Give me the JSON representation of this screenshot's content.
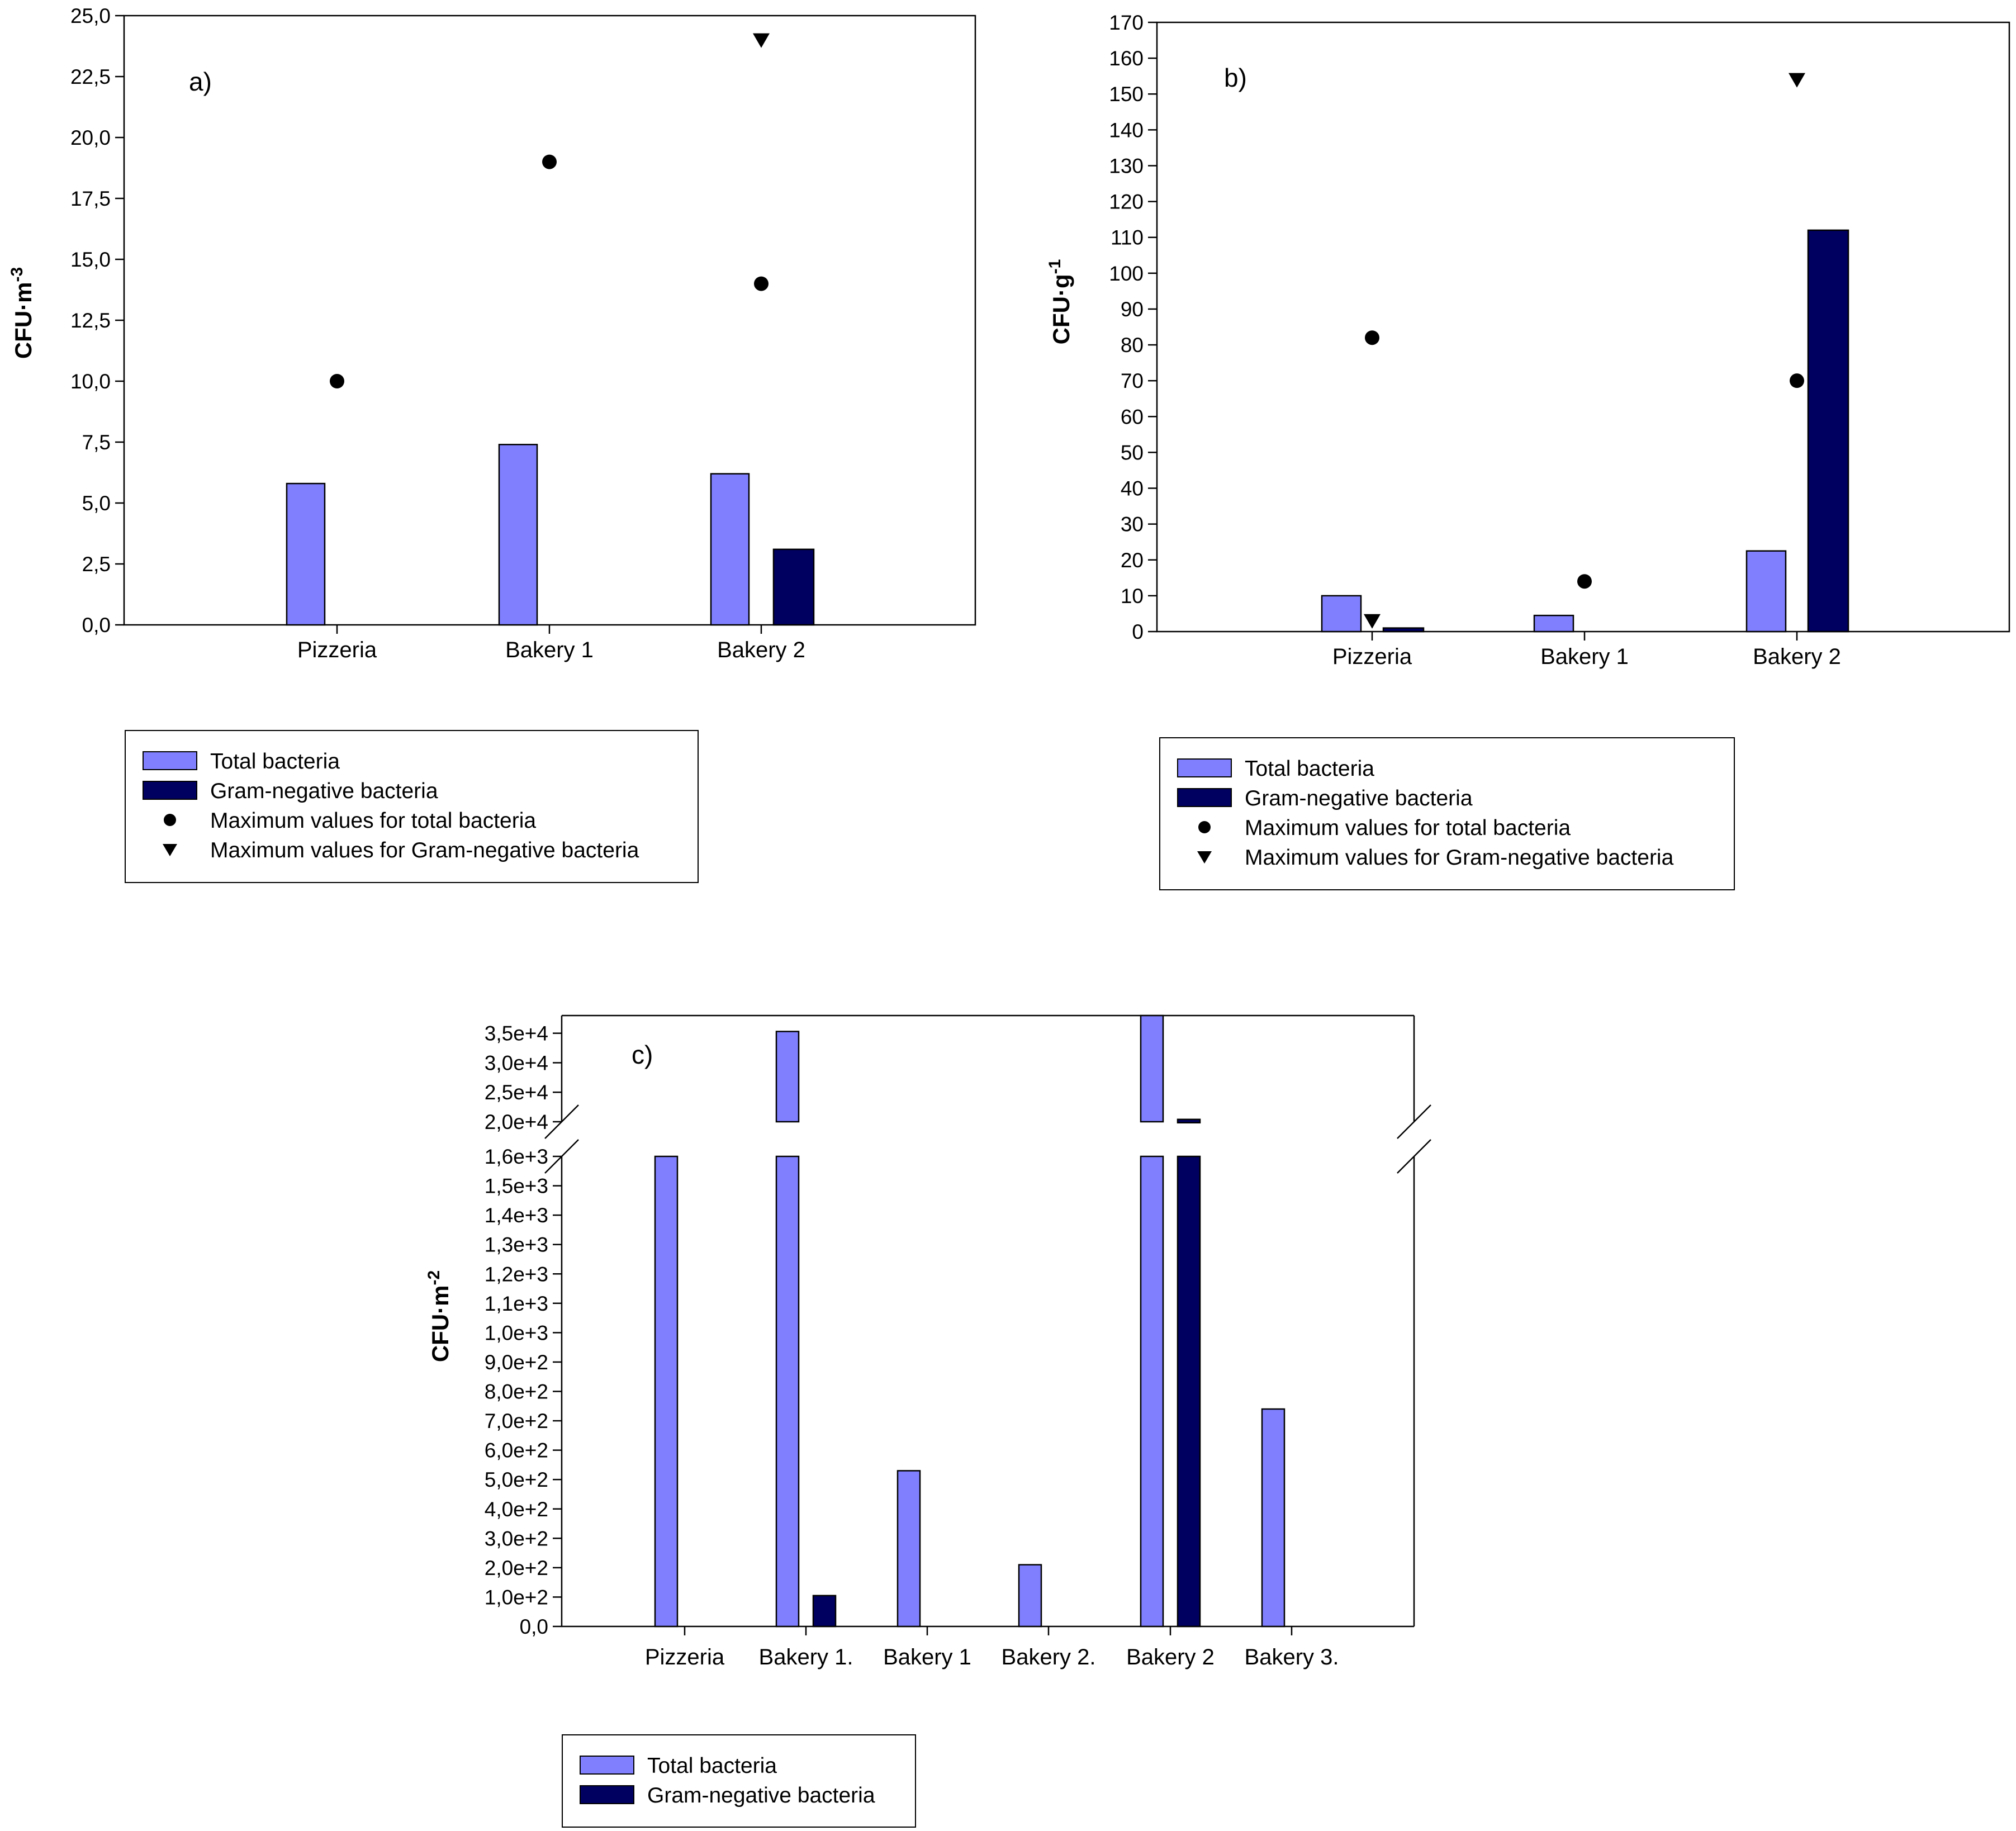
{
  "colors": {
    "total": "#8080ff",
    "gram": "#000060",
    "marker": "#000000"
  },
  "chart_data": [
    {
      "panel": "a)",
      "type": "bar",
      "ylabel": {
        "base": "CFU·m",
        "sup": "-3"
      },
      "ylim": [
        0,
        25
      ],
      "yticks": [
        "0,0",
        "2,5",
        "5,0",
        "7,5",
        "10,0",
        "12,5",
        "15,0",
        "17,5",
        "20,0",
        "22,5",
        "25,0"
      ],
      "categories": [
        "Pizzeria",
        "Bakery 1",
        "Bakery 2"
      ],
      "series": [
        {
          "name": "Total bacteria",
          "values": [
            5.8,
            7.4,
            6.2
          ]
        },
        {
          "name": "Gram-negative bacteria",
          "values": [
            0,
            0,
            3.1
          ]
        }
      ],
      "markers": [
        {
          "name": "Maximum values for total bacteria",
          "values": [
            10,
            19,
            14
          ]
        },
        {
          "name": "Maximum values for Gram-negative bacteria",
          "values": [
            null,
            null,
            24
          ]
        }
      ],
      "legend": [
        "Total bacteria",
        "Gram-negative bacteria",
        "Maximum values for total bacteria",
        "Maximum values for Gram-negative bacteria"
      ]
    },
    {
      "panel": "b)",
      "type": "bar",
      "ylabel": {
        "base": "CFU·g",
        "sup": "-1"
      },
      "ylim": [
        0,
        170
      ],
      "yticks": [
        "0",
        "10",
        "20",
        "30",
        "40",
        "50",
        "60",
        "70",
        "80",
        "90",
        "100",
        "110",
        "120",
        "130",
        "140",
        "150",
        "160",
        "170"
      ],
      "categories": [
        "Pizzeria",
        "Bakery 1",
        "Bakery 2"
      ],
      "series": [
        {
          "name": "Total bacteria",
          "values": [
            10,
            4.5,
            22.5
          ]
        },
        {
          "name": "Gram-negative bacteria",
          "values": [
            1,
            0,
            112
          ]
        }
      ],
      "markers": [
        {
          "name": "Maximum values for total bacteria",
          "values": [
            82,
            14,
            70
          ]
        },
        {
          "name": "Maximum values for Gram-negative bacteria",
          "values": [
            3,
            null,
            154
          ]
        }
      ],
      "legend": [
        "Total bacteria",
        "Gram-negative bacteria",
        "Maximum values for total bacteria",
        "Maximum values for Gram-negative bacteria"
      ]
    },
    {
      "panel": "c)",
      "type": "bar",
      "ylabel": {
        "base": "CFU·m",
        "sup": "-2"
      },
      "axis_break": {
        "lower": [
          0,
          1600
        ],
        "upper": [
          20000,
          38000
        ]
      },
      "yticks_lower": [
        "0,0",
        "1,0e+2",
        "2,0e+2",
        "3,0e+2",
        "4,0e+2",
        "5,0e+2",
        "6,0e+2",
        "7,0e+2",
        "8,0e+2",
        "9,0e+2",
        "1,0e+3",
        "1,1e+3",
        "1,2e+3",
        "1,3e+3",
        "1,4e+3",
        "1,5e+3",
        "1,6e+3"
      ],
      "yticks_upper": [
        "2,0e+4",
        "2,5e+4",
        "3,0e+4",
        "3,5e+4"
      ],
      "categories": [
        "Pizzeria",
        "Bakery 1.",
        "Bakery 1",
        "Bakery 2.",
        "Bakery 2",
        "Bakery 3."
      ],
      "series": [
        {
          "name": "Total bacteria",
          "values": [
            1600,
            35300,
            530,
            210,
            38000,
            740
          ]
        },
        {
          "name": "Gram-negative bacteria",
          "values": [
            0,
            105,
            0,
            0,
            20400,
            0
          ]
        }
      ],
      "legend": [
        "Total bacteria",
        "Gram-negative bacteria"
      ]
    }
  ]
}
